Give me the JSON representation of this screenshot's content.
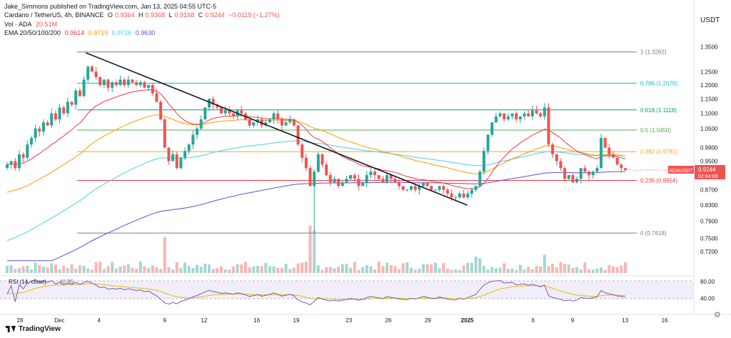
{
  "header": {
    "credit": "Jake_Simmons published on TradingView.com, Jan 13, 2025 04:55 UTC-5",
    "symbol": "Cardano / TetherUS, 4h, BINANCE",
    "ohlc": {
      "o_label": "O",
      "o": "0.9364",
      "h_label": "H",
      "h": "0.9368",
      "l_label": "L",
      "l": "0.9168",
      "c_label": "C",
      "c": "0.9244",
      "change": "−0.0119 (−1.27%)"
    },
    "vol_label": "Vol · ADA",
    "vol_value": "20.51M",
    "ema_label": "EMA 20/50/100/200",
    "ema_values": [
      "0.9614",
      "0.9719",
      "0.9726",
      "0.9630"
    ]
  },
  "currency": "USDT",
  "brand": "TradingView",
  "colors": {
    "up": "#26a69a",
    "down": "#ef5350",
    "ema20": "#f23645",
    "ema50": "#ff9800",
    "ema100": "#4dd0e1",
    "ema200": "#5b4fd6",
    "rsi": "#7e57c2",
    "rsi_ma": "#e0c200"
  },
  "chart_data": {
    "type": "candlestick",
    "symbol": "ADAUSDT",
    "interval": "4h",
    "price_axis": {
      "scale": "log",
      "range": [
        0.695,
        1.39
      ],
      "ticks": [
        "1.3500",
        "1.2500",
        "1.2000",
        "1.1500",
        "1.1000",
        "1.0500",
        "0.9900",
        "0.9500",
        "0.8700",
        "0.8300",
        "0.7900",
        "0.7500",
        "0.7200"
      ]
    },
    "x_axis": {
      "ticks": [
        "28",
        "Dec",
        "4",
        "9",
        "12",
        "16",
        "19",
        "23",
        "26",
        "29",
        "2025",
        "6",
        "9",
        "13",
        "16"
      ]
    },
    "last_price": {
      "symbol": "ADAUSDT",
      "price": "0.9244",
      "countdown": "02:04:09"
    },
    "fib_levels": [
      {
        "ratio": "1",
        "price": "1.3282",
        "value": 1.3282,
        "color": "#787b86"
      },
      {
        "ratio": "0.786",
        "price": "1.2070",
        "value": 1.207,
        "color": "#00bcd4"
      },
      {
        "ratio": "0.618",
        "price": "1.1118",
        "value": 1.1118,
        "color": "#089981"
      },
      {
        "ratio": "0.5",
        "price": "1.0450",
        "value": 1.045,
        "color": "#4caf50"
      },
      {
        "ratio": "0.382",
        "price": "0.9781",
        "value": 0.9781,
        "color": "#f5a623"
      },
      {
        "ratio": "0.236",
        "price": "0.8954",
        "value": 0.8954,
        "color": "#f23645"
      },
      {
        "ratio": "0",
        "price": "0.7618",
        "value": 0.7618,
        "color": "#787b86"
      }
    ],
    "trendline": {
      "from": {
        "date": "2024-12-03",
        "price": 1.325
      },
      "to": {
        "date": "2025-01-01",
        "price": 0.83
      }
    },
    "closes": [
      0.94,
      0.95,
      0.93,
      0.97,
      0.96,
      1.0,
      1.02,
      1.05,
      1.04,
      1.07,
      1.06,
      1.1,
      1.08,
      1.12,
      1.1,
      1.14,
      1.13,
      1.18,
      1.16,
      1.22,
      1.27,
      1.25,
      1.23,
      1.2,
      1.22,
      1.19,
      1.21,
      1.2,
      1.22,
      1.2,
      1.22,
      1.21,
      1.2,
      1.21,
      1.19,
      1.2,
      1.17,
      1.14,
      1.08,
      0.99,
      0.95,
      0.97,
      0.93,
      0.96,
      0.98,
      1.0,
      1.03,
      1.05,
      1.08,
      1.12,
      1.15,
      1.13,
      1.12,
      1.1,
      1.11,
      1.1,
      1.09,
      1.11,
      1.1,
      1.08,
      1.06,
      1.07,
      1.08,
      1.06,
      1.07,
      1.08,
      1.1,
      1.08,
      1.06,
      1.07,
      1.08,
      1.06,
      1.0,
      0.96,
      0.93,
      0.88,
      0.92,
      0.97,
      0.94,
      0.91,
      0.89,
      0.9,
      0.88,
      0.89,
      0.9,
      0.91,
      0.9,
      0.88,
      0.89,
      0.91,
      0.92,
      0.91,
      0.9,
      0.89,
      0.91,
      0.9,
      0.89,
      0.88,
      0.87,
      0.87,
      0.88,
      0.87,
      0.88,
      0.89,
      0.88,
      0.87,
      0.87,
      0.88,
      0.87,
      0.86,
      0.85,
      0.85,
      0.86,
      0.85,
      0.86,
      0.87,
      0.88,
      0.92,
      0.98,
      1.03,
      1.07,
      1.09,
      1.1,
      1.08,
      1.09,
      1.1,
      1.08,
      1.09,
      1.1,
      1.09,
      1.11,
      1.1,
      1.09,
      1.12,
      1.0,
      0.97,
      0.95,
      0.93,
      0.9,
      0.91,
      0.89,
      0.9,
      0.93,
      0.92,
      0.91,
      0.92,
      0.93,
      1.02,
      0.99,
      0.97,
      0.96,
      0.94,
      0.93,
      0.924
    ],
    "volume_note": "relative volume bars shown beneath candles",
    "rsi": {
      "label": "RSI (14, close)",
      "value": "40.85",
      "levels": [
        "80.00",
        "40.00"
      ],
      "range": [
        10,
        90
      ]
    }
  }
}
